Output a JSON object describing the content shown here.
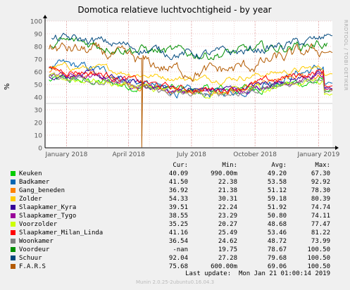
{
  "chart_data": {
    "type": "line",
    "title": "Domotica relatieve luchtvochtigheid - by year",
    "ylabel": "%",
    "side_label": "RRDTOOL / TOBI OETIKER",
    "ylim": [
      0,
      100
    ],
    "yticks": [
      0,
      10,
      20,
      30,
      40,
      50,
      60,
      70,
      80,
      90,
      100
    ],
    "xticks": [
      "January 2018",
      "April 2018",
      "July 2018",
      "October 2018",
      "January 2019"
    ],
    "xlim": [
      "2017-12-01",
      "2019-01-21"
    ],
    "grid": true,
    "legend": "below",
    "columns": [
      "Cur:",
      "Min:",
      "Avg:",
      "Max:"
    ],
    "series": [
      {
        "name": "Keuken",
        "color": "#00cc00",
        "cur": "40.09",
        "min": "990.00m",
        "avg": "49.20",
        "max": "67.30"
      },
      {
        "name": "Badkamer",
        "color": "#0066b3",
        "cur": "41.50",
        "min": "22.38",
        "avg": "53.58",
        "max": "92.92"
      },
      {
        "name": "Gang_beneden",
        "color": "#ff8000",
        "cur": "36.92",
        "min": "21.38",
        "avg": "51.12",
        "max": "78.30"
      },
      {
        "name": "Zolder",
        "color": "#ffcc00",
        "cur": "54.33",
        "min": "30.31",
        "avg": "59.18",
        "max": "80.39"
      },
      {
        "name": "Slaapkamer_Kyra",
        "color": "#330099",
        "cur": "39.51",
        "min": "22.24",
        "avg": "51.92",
        "max": "74.74"
      },
      {
        "name": "Slaapkamer_Tygo",
        "color": "#990099",
        "cur": "38.55",
        "min": "23.29",
        "avg": "50.80",
        "max": "74.11"
      },
      {
        "name": "Voorzolder",
        "color": "#ccff00",
        "cur": "35.25",
        "min": "20.27",
        "avg": "48.68",
        "max": "77.47"
      },
      {
        "name": "Slaapkamer_Milan_Linda",
        "color": "#ff0000",
        "cur": "41.16",
        "min": "25.49",
        "avg": "53.46",
        "max": "81.22"
      },
      {
        "name": "Woonkamer",
        "color": "#808080",
        "cur": "36.54",
        "min": "24.62",
        "avg": "48.72",
        "max": "73.99"
      },
      {
        "name": "Voordeur",
        "color": "#008f00",
        "cur": "-nan",
        "min": "19.75",
        "avg": "78.67",
        "max": "100.50"
      },
      {
        "name": "Schuur",
        "color": "#00487d",
        "cur": "92.04",
        "min": "27.28",
        "avg": "79.68",
        "max": "100.50"
      },
      {
        "name": "F.A.R.S",
        "color": "#b35a00",
        "cur": "75.68",
        "min": "600.00m",
        "avg": "69.06",
        "max": "100.50"
      }
    ]
  },
  "footer": {
    "last_update": "Last update:  Mon Jan 21 01:00:14 2019",
    "munin": "Munin 2.0.25-2ubuntu0.16.04.3"
  }
}
